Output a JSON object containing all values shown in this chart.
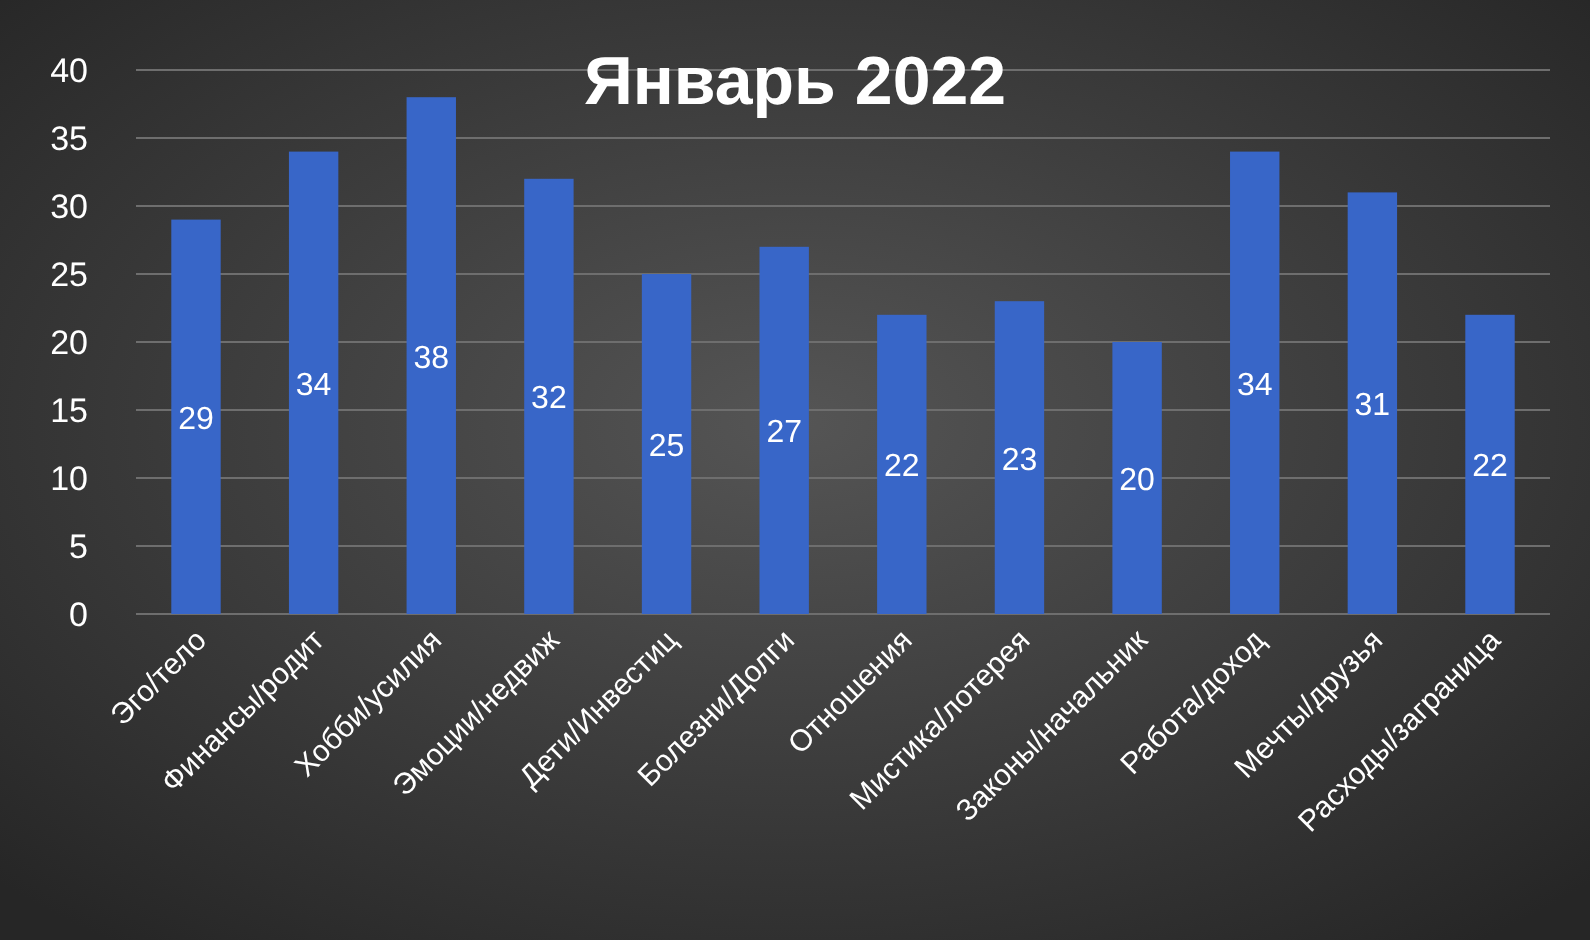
{
  "chart_data": {
    "type": "bar",
    "title": "Январь 2022",
    "categories": [
      "Эго/тело",
      "Финансы/родит",
      "Хобби/усилия",
      "Эмоции/недвиж",
      "Дети/Инвестиц",
      "Болезни/Долги",
      "Отношения",
      "Мистика/лотерея",
      "Законы/начальник",
      "Работа/доход",
      "Мечты/друзья",
      "Расходы/заграница"
    ],
    "values": [
      29,
      34,
      38,
      32,
      25,
      27,
      22,
      23,
      20,
      34,
      31,
      22
    ],
    "color": "#3866c8",
    "ylim": [
      0,
      40
    ],
    "yticks": [
      0,
      5,
      10,
      15,
      20,
      25,
      30,
      35,
      40
    ],
    "grid": "y",
    "data_labels": true
  }
}
